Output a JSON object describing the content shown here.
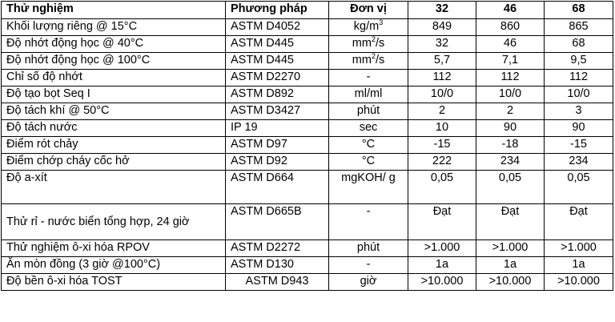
{
  "table": {
    "headers": {
      "test": "Thử nghiệm",
      "method": "Phương pháp",
      "unit": "Đơn vị",
      "g32": "32",
      "g46": "46",
      "g68": "68"
    },
    "rows": [
      {
        "test": "Khối lượng riêng @ 15°C",
        "method": "ASTM D4052",
        "unit_base": "kg/m",
        "unit_sup": "3",
        "v32": "849",
        "v46": "860",
        "v68": "865"
      },
      {
        "test": "Độ nhớt động học @ 40°C",
        "method": "ASTM D445",
        "unit_base": "mm",
        "unit_sup": "2",
        "unit_tail": "/s",
        "v32": "32",
        "v46": "46",
        "v68": "68"
      },
      {
        "test": "Độ nhớt động học @ 100°C",
        "method": "ASTM D445",
        "unit_base": "mm",
        "unit_sup": "2",
        "unit_tail": "/s",
        "v32": "5,7",
        "v46": "7,1",
        "v68": "9,5"
      },
      {
        "test": "Chỉ số độ nhớt",
        "method": "ASTM D2270",
        "unit": "-",
        "v32": "112",
        "v46": "112",
        "v68": "112"
      },
      {
        "test": "Độ tạo bọt Seq I",
        "method": "ASTM D892",
        "unit": "ml/ml",
        "v32": "10/0",
        "v46": "10/0",
        "v68": "10/0"
      },
      {
        "test": "Độ tách khí @ 50°C",
        "method": "ASTM D3427",
        "unit": "phút",
        "v32": "2",
        "v46": "2",
        "v68": "3"
      },
      {
        "test": "Độ tách nước",
        "method": "IP 19",
        "unit": "sec",
        "v32": "10",
        "v46": "90",
        "v68": "90"
      },
      {
        "test": "Điểm rót chảy",
        "method": "ASTM D97",
        "unit": "°C",
        "v32": "-15",
        "v46": "-18",
        "v68": "-15"
      },
      {
        "test": "Điểm chớp cháy cốc hở",
        "method": "ASTM D92",
        "unit": "°C",
        "v32": "222",
        "v46": "234",
        "v68": "234"
      },
      {
        "test": "Độ a-xít",
        "method": "ASTM D664",
        "unit": "mgKOH/ g",
        "v32": "0,05",
        "v46": "0,05",
        "v68": "0,05"
      },
      {
        "test": "Thử rỉ - nước biển tổng hợp, 24 giờ",
        "method": "ASTM D665B",
        "unit": "-",
        "v32": "Đạt",
        "v46": "Đạt",
        "v68": "Đạt"
      },
      {
        "test": "Thử nghiệm ô-xi hóa RPOV",
        "method": "ASTM D2272",
        "unit": "phút",
        "v32": ">1.000",
        "v46": ">1.000",
        "v68": ">1.000"
      },
      {
        "test": "Ăn mòn đồng (3 giờ @100°C)",
        "method": "ASTM D130",
        "unit": "-",
        "v32": "1a",
        "v46": "1a",
        "v68": "1a"
      },
      {
        "test": "Độ bền ô-xi hóa TOST",
        "method": "ASTM D943",
        "unit": "giờ",
        "v32": ">10.000",
        "v46": ">10.000",
        "v68": ">10.000"
      }
    ]
  }
}
